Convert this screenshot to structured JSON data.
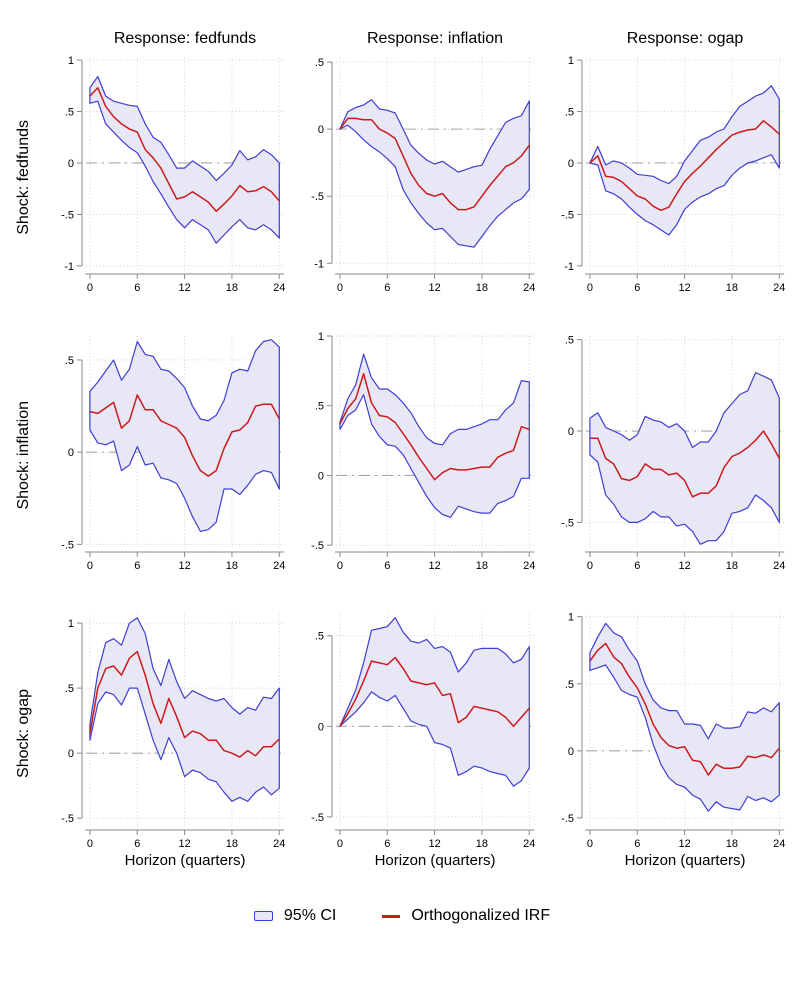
{
  "figure": {
    "column_titles": [
      "Response: fedfunds",
      "Response: inflation",
      "Response: ogap"
    ],
    "row_titles": [
      "Shock: fedfunds",
      "Shock: inflation",
      "Shock: ogap"
    ],
    "xaxis_title": "Horizon (quarters)",
    "legend": {
      "ci_label": "95% CI",
      "irf_label": "Orthogonalized IRF"
    }
  },
  "colors": {
    "band_fill": "#e7e7f6",
    "ci_stroke": "#3e3ed2",
    "irf_stroke": "#cc1a1a",
    "grid": "#cdcdcd",
    "zero_line": "#a8a8a8",
    "axis": "#8a8a8a",
    "text": "#000000"
  },
  "chart_data": {
    "type": "line",
    "legend_position": "bottom",
    "x": [
      0,
      1,
      2,
      3,
      4,
      5,
      6,
      7,
      8,
      9,
      10,
      11,
      12,
      13,
      14,
      15,
      16,
      17,
      18,
      19,
      20,
      21,
      22,
      23,
      24
    ],
    "xticks": [
      0,
      6,
      12,
      18,
      24
    ],
    "series_names": [
      "95% CI upper",
      "Orthogonalized IRF",
      "95% CI lower"
    ],
    "panels": [
      {
        "shock": "fedfunds",
        "response": "fedfunds",
        "yticks": [
          1,
          0.5,
          0,
          -0.5,
          -1
        ],
        "ylim": [
          -1.04,
          1.02
        ],
        "irf": [
          0.65,
          0.73,
          0.55,
          0.45,
          0.38,
          0.33,
          0.3,
          0.13,
          0.05,
          -0.05,
          -0.2,
          -0.35,
          -0.33,
          -0.28,
          -0.33,
          -0.38,
          -0.47,
          -0.4,
          -0.32,
          -0.22,
          -0.28,
          -0.27,
          -0.23,
          -0.28,
          -0.37
        ],
        "upper": [
          0.73,
          0.84,
          0.65,
          0.6,
          0.58,
          0.56,
          0.55,
          0.38,
          0.25,
          0.2,
          0.08,
          -0.05,
          -0.05,
          0.02,
          -0.03,
          -0.08,
          -0.17,
          -0.1,
          -0.02,
          0.12,
          0.03,
          0.06,
          0.13,
          0.08,
          0.0
        ],
        "lower": [
          0.58,
          0.6,
          0.38,
          0.3,
          0.22,
          0.15,
          0.1,
          -0.03,
          -0.18,
          -0.3,
          -0.43,
          -0.55,
          -0.63,
          -0.55,
          -0.6,
          -0.65,
          -0.78,
          -0.7,
          -0.62,
          -0.55,
          -0.63,
          -0.65,
          -0.6,
          -0.65,
          -0.73
        ]
      },
      {
        "shock": "fedfunds",
        "response": "inflation",
        "yticks": [
          0.5,
          0,
          -0.5,
          -1
        ],
        "ylim": [
          -1.05,
          0.53
        ],
        "irf": [
          0.0,
          0.08,
          0.08,
          0.07,
          0.07,
          0.0,
          -0.03,
          -0.07,
          -0.2,
          -0.33,
          -0.42,
          -0.48,
          -0.5,
          -0.48,
          -0.55,
          -0.6,
          -0.6,
          -0.58,
          -0.5,
          -0.42,
          -0.35,
          -0.28,
          -0.25,
          -0.2,
          -0.12
        ],
        "upper": [
          0.0,
          0.13,
          0.16,
          0.18,
          0.22,
          0.15,
          0.14,
          0.12,
          0.0,
          -0.12,
          -0.18,
          -0.23,
          -0.26,
          -0.24,
          -0.28,
          -0.32,
          -0.3,
          -0.28,
          -0.27,
          -0.15,
          -0.05,
          0.05,
          0.08,
          0.1,
          0.21
        ],
        "lower": [
          0.0,
          0.03,
          -0.02,
          -0.08,
          -0.13,
          -0.17,
          -0.22,
          -0.28,
          -0.45,
          -0.55,
          -0.63,
          -0.7,
          -0.75,
          -0.74,
          -0.8,
          -0.86,
          -0.87,
          -0.88,
          -0.8,
          -0.72,
          -0.65,
          -0.6,
          -0.55,
          -0.52,
          -0.45
        ]
      },
      {
        "shock": "fedfunds",
        "response": "ogap",
        "yticks": [
          1,
          0.5,
          0,
          -0.5,
          -1
        ],
        "ylim": [
          -1.04,
          1.02
        ],
        "irf": [
          0.0,
          0.07,
          -0.13,
          -0.14,
          -0.18,
          -0.25,
          -0.32,
          -0.35,
          -0.42,
          -0.46,
          -0.43,
          -0.3,
          -0.18,
          -0.1,
          -0.03,
          0.05,
          0.13,
          0.2,
          0.27,
          0.3,
          0.32,
          0.33,
          0.41,
          0.35,
          0.28
        ],
        "upper": [
          0.0,
          0.16,
          -0.02,
          0.02,
          0.0,
          -0.05,
          -0.11,
          -0.12,
          -0.13,
          -0.17,
          -0.2,
          -0.13,
          0.02,
          0.12,
          0.22,
          0.25,
          0.3,
          0.33,
          0.45,
          0.55,
          0.6,
          0.65,
          0.68,
          0.75,
          0.62
        ],
        "lower": [
          0.0,
          -0.02,
          -0.27,
          -0.3,
          -0.35,
          -0.43,
          -0.5,
          -0.56,
          -0.6,
          -0.65,
          -0.7,
          -0.6,
          -0.45,
          -0.38,
          -0.33,
          -0.3,
          -0.25,
          -0.22,
          -0.12,
          -0.05,
          0.0,
          0.02,
          0.05,
          0.08,
          -0.05
        ]
      },
      {
        "shock": "inflation",
        "response": "fedfunds",
        "yticks": [
          0.5,
          0,
          -0.5
        ],
        "ylim": [
          -0.52,
          0.63
        ],
        "irf": [
          0.22,
          0.21,
          0.24,
          0.27,
          0.13,
          0.17,
          0.31,
          0.23,
          0.23,
          0.17,
          0.15,
          0.13,
          0.08,
          -0.02,
          -0.1,
          -0.13,
          -0.1,
          0.02,
          0.11,
          0.12,
          0.16,
          0.25,
          0.26,
          0.26,
          0.18
        ],
        "upper": [
          0.33,
          0.38,
          0.44,
          0.5,
          0.39,
          0.45,
          0.6,
          0.53,
          0.52,
          0.45,
          0.44,
          0.4,
          0.35,
          0.25,
          0.18,
          0.17,
          0.2,
          0.28,
          0.43,
          0.45,
          0.44,
          0.55,
          0.6,
          0.61,
          0.57
        ],
        "lower": [
          0.12,
          0.05,
          0.04,
          0.06,
          -0.1,
          -0.07,
          0.03,
          -0.07,
          -0.06,
          -0.14,
          -0.15,
          -0.17,
          -0.25,
          -0.35,
          -0.43,
          -0.42,
          -0.38,
          -0.2,
          -0.2,
          -0.23,
          -0.18,
          -0.12,
          -0.1,
          -0.11,
          -0.2
        ]
      },
      {
        "shock": "inflation",
        "response": "inflation",
        "yticks": [
          1,
          0.5,
          0,
          -0.5
        ],
        "ylim": [
          -0.52,
          1.0
        ],
        "irf": [
          0.37,
          0.48,
          0.55,
          0.73,
          0.52,
          0.43,
          0.42,
          0.38,
          0.3,
          0.22,
          0.13,
          0.05,
          -0.03,
          0.02,
          0.05,
          0.04,
          0.04,
          0.05,
          0.06,
          0.06,
          0.13,
          0.16,
          0.18,
          0.35,
          0.33
        ],
        "upper": [
          0.38,
          0.55,
          0.65,
          0.87,
          0.7,
          0.62,
          0.62,
          0.58,
          0.52,
          0.45,
          0.35,
          0.27,
          0.23,
          0.22,
          0.3,
          0.33,
          0.33,
          0.35,
          0.37,
          0.4,
          0.4,
          0.47,
          0.52,
          0.68,
          0.67
        ],
        "lower": [
          0.33,
          0.43,
          0.47,
          0.58,
          0.37,
          0.28,
          0.22,
          0.21,
          0.15,
          0.05,
          -0.05,
          -0.15,
          -0.23,
          -0.28,
          -0.3,
          -0.22,
          -0.24,
          -0.26,
          -0.27,
          -0.27,
          -0.2,
          -0.18,
          -0.15,
          -0.02,
          -0.02
        ]
      },
      {
        "shock": "inflation",
        "response": "ogap",
        "yticks": [
          0.5,
          0,
          -0.5
        ],
        "ylim": [
          -0.64,
          0.52
        ],
        "irf": [
          -0.04,
          -0.04,
          -0.15,
          -0.18,
          -0.26,
          -0.27,
          -0.25,
          -0.18,
          -0.21,
          -0.21,
          -0.24,
          -0.23,
          -0.27,
          -0.36,
          -0.34,
          -0.34,
          -0.3,
          -0.2,
          -0.14,
          -0.12,
          -0.09,
          -0.05,
          0.0,
          -0.07,
          -0.15
        ],
        "upper": [
          0.07,
          0.1,
          0.02,
          0.0,
          -0.02,
          -0.05,
          -0.02,
          0.08,
          0.06,
          0.05,
          0.02,
          0.04,
          0.0,
          -0.09,
          -0.06,
          -0.06,
          0.0,
          0.1,
          0.15,
          0.2,
          0.22,
          0.32,
          0.3,
          0.28,
          0.18
        ],
        "lower": [
          -0.13,
          -0.17,
          -0.35,
          -0.4,
          -0.47,
          -0.5,
          -0.5,
          -0.48,
          -0.44,
          -0.47,
          -0.47,
          -0.52,
          -0.51,
          -0.55,
          -0.62,
          -0.6,
          -0.6,
          -0.55,
          -0.45,
          -0.44,
          -0.42,
          -0.35,
          -0.38,
          -0.42,
          -0.5
        ]
      },
      {
        "shock": "ogap",
        "response": "fedfunds",
        "yticks": [
          1,
          0.5,
          0,
          -0.5
        ],
        "ylim": [
          -0.56,
          1.07
        ],
        "irf": [
          0.15,
          0.5,
          0.65,
          0.67,
          0.6,
          0.73,
          0.78,
          0.6,
          0.38,
          0.23,
          0.42,
          0.28,
          0.12,
          0.17,
          0.15,
          0.1,
          0.1,
          0.02,
          0.0,
          -0.03,
          0.02,
          -0.02,
          0.05,
          0.05,
          0.11
        ],
        "upper": [
          0.22,
          0.62,
          0.85,
          0.88,
          0.83,
          1.0,
          1.04,
          0.92,
          0.65,
          0.52,
          0.72,
          0.55,
          0.42,
          0.48,
          0.45,
          0.42,
          0.4,
          0.42,
          0.35,
          0.3,
          0.35,
          0.33,
          0.43,
          0.42,
          0.5
        ],
        "lower": [
          0.1,
          0.38,
          0.47,
          0.45,
          0.37,
          0.5,
          0.5,
          0.3,
          0.1,
          -0.05,
          0.12,
          0.0,
          -0.18,
          -0.13,
          -0.15,
          -0.2,
          -0.22,
          -0.3,
          -0.37,
          -0.34,
          -0.37,
          -0.3,
          -0.26,
          -0.32,
          -0.27
        ]
      },
      {
        "shock": "ogap",
        "response": "inflation",
        "yticks": [
          0.5,
          0,
          -0.5
        ],
        "ylim": [
          -0.55,
          0.62
        ],
        "irf": [
          0.0,
          0.07,
          0.15,
          0.25,
          0.36,
          0.35,
          0.34,
          0.38,
          0.32,
          0.25,
          0.24,
          0.23,
          0.24,
          0.17,
          0.18,
          0.02,
          0.05,
          0.11,
          0.1,
          0.09,
          0.08,
          0.05,
          0.0,
          0.05,
          0.1
        ],
        "upper": [
          0.0,
          0.1,
          0.2,
          0.35,
          0.53,
          0.54,
          0.55,
          0.6,
          0.52,
          0.47,
          0.46,
          0.48,
          0.43,
          0.44,
          0.41,
          0.3,
          0.35,
          0.42,
          0.43,
          0.43,
          0.43,
          0.4,
          0.35,
          0.37,
          0.44
        ],
        "lower": [
          0.0,
          0.04,
          0.08,
          0.13,
          0.19,
          0.16,
          0.14,
          0.17,
          0.1,
          0.03,
          0.01,
          0.0,
          -0.09,
          -0.1,
          -0.12,
          -0.27,
          -0.25,
          -0.22,
          -0.23,
          -0.25,
          -0.26,
          -0.27,
          -0.33,
          -0.3,
          -0.23
        ]
      },
      {
        "shock": "ogap",
        "response": "ogap",
        "yticks": [
          1,
          0.5,
          0,
          -0.5
        ],
        "ylim": [
          -0.56,
          1.02
        ],
        "irf": [
          0.67,
          0.75,
          0.8,
          0.7,
          0.65,
          0.55,
          0.47,
          0.35,
          0.2,
          0.1,
          0.04,
          0.02,
          0.03,
          -0.07,
          -0.08,
          -0.18,
          -0.1,
          -0.13,
          -0.13,
          -0.12,
          -0.04,
          -0.05,
          -0.03,
          -0.05,
          0.02
        ],
        "upper": [
          0.73,
          0.85,
          0.95,
          0.88,
          0.85,
          0.75,
          0.67,
          0.5,
          0.38,
          0.32,
          0.3,
          0.3,
          0.2,
          0.2,
          0.19,
          0.09,
          0.2,
          0.17,
          0.17,
          0.18,
          0.29,
          0.28,
          0.32,
          0.29,
          0.36
        ],
        "lower": [
          0.6,
          0.62,
          0.64,
          0.55,
          0.45,
          0.42,
          0.4,
          0.25,
          0.05,
          -0.1,
          -0.2,
          -0.25,
          -0.27,
          -0.33,
          -0.36,
          -0.45,
          -0.38,
          -0.42,
          -0.43,
          -0.44,
          -0.34,
          -0.37,
          -0.35,
          -0.38,
          -0.33
        ]
      }
    ]
  }
}
